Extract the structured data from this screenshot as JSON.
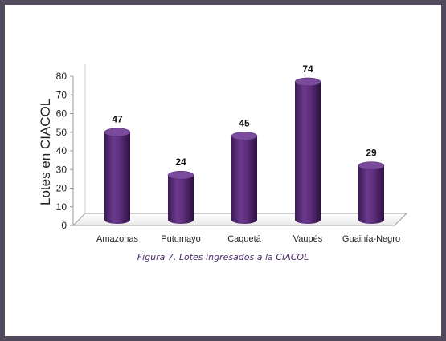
{
  "chart_data": {
    "type": "bar",
    "categories": [
      "Amazonas",
      "Putumayo",
      "Caquetá",
      "Vaupés",
      "Guainía-Negro"
    ],
    "values": [
      47,
      24,
      45,
      74,
      29
    ],
    "data_labels": [
      "47",
      "24",
      "45",
      "74",
      "29"
    ],
    "ylabel": "Lotes en CIACOL",
    "ylim": [
      0,
      80
    ],
    "yticks": [
      0,
      10,
      20,
      30,
      40,
      50,
      60,
      70,
      80
    ],
    "grid": false,
    "bar_color": "#5e2d7c"
  },
  "caption": "Figura 7. Lotes ingresados a la CIACOL",
  "colors": {
    "frame": "#514a5c",
    "background": "#ffffff",
    "bar": "#5e2d7c",
    "caption": "#4b2f6b"
  }
}
